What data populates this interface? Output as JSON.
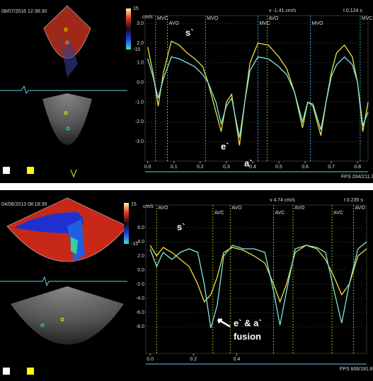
{
  "chart_data": [
    {
      "type": "line",
      "image_label": "08/07/2016 12:38:30",
      "colorbar_labels": [
        "15",
        "-15"
      ],
      "y_label": "cm/s",
      "readouts": [
        "v -1.41 cm/s",
        "t 0.124 s"
      ],
      "footer": "FPS 204/211.3",
      "xlim": [
        -0.01,
        0.84
      ],
      "ylim": [
        -4.0,
        3.4
      ],
      "xticks": [
        {
          "value": 0,
          "label": "0.0"
        },
        0.1,
        0.2,
        0.3,
        0.4,
        0.5,
        0.6,
        0.7,
        0.8
      ],
      "yticks": [
        {
          "value": 3,
          "label": "3.0"
        },
        {
          "value": 2,
          "label": "2.0"
        },
        {
          "value": 1,
          "label": "1.0"
        },
        {
          "value": 0,
          "label": "0.0"
        },
        {
          "value": -1,
          "label": "-1.0"
        },
        {
          "value": -2,
          "label": "-2.0"
        },
        {
          "value": -3,
          "label": "-3.0"
        }
      ],
      "events": [
        {
          "label": "MVC",
          "x": 0.03,
          "color": "#5ad0ff"
        },
        {
          "label": "AVO",
          "x": 0.075,
          "color": "#b8e000"
        },
        {
          "label": "MVO",
          "x": 0.22,
          "color": "#5ad0ff"
        },
        {
          "label": "MVC",
          "x": 0.42,
          "color": "#5ad0ff"
        },
        {
          "label": "AVO",
          "x": 0.455,
          "color": "#b8e000"
        },
        {
          "label": "MVO",
          "x": 0.62,
          "color": "#5ad0ff"
        },
        {
          "label": "MVC",
          "x": 0.81,
          "color": "#5ad0ff"
        }
      ],
      "annotations": [
        "s`",
        "e`",
        "a`"
      ],
      "x": [
        0,
        0.02,
        0.04,
        0.06,
        0.09,
        0.12,
        0.15,
        0.18,
        0.21,
        0.23,
        0.26,
        0.28,
        0.3,
        0.32,
        0.35,
        0.37,
        0.39,
        0.42,
        0.46,
        0.5,
        0.53,
        0.56,
        0.59,
        0.61,
        0.63,
        0.66,
        0.68,
        0.7,
        0.72,
        0.75,
        0.78,
        0.8,
        0.82,
        0.84
      ],
      "series": [
        {
          "color": "#f0e040",
          "values": [
            1.8,
            0.5,
            -1.2,
            0.5,
            2.1,
            1.9,
            1.5,
            1.2,
            0.8,
            0,
            -1.5,
            -2.5,
            -1,
            -0.6,
            -3.2,
            -1,
            1,
            2,
            1.9,
            1.3,
            0.7,
            -0.5,
            -2.3,
            -1,
            -1.2,
            -2.7,
            -1,
            0.5,
            1.5,
            1.9,
            1.3,
            0,
            -2.5,
            -1
          ]
        },
        {
          "color": "#7fe8e0",
          "values": [
            1.2,
            0.3,
            -0.8,
            0.2,
            1.3,
            1.2,
            1,
            0.8,
            0.4,
            0,
            -1,
            -2.1,
            -1.2,
            -0.8,
            -2.8,
            -1,
            0.6,
            1.3,
            1.2,
            0.8,
            0.4,
            -0.5,
            -2,
            -1,
            -1.1,
            -2.4,
            -1,
            0.3,
            0.9,
            1.3,
            0.9,
            0,
            -2.2,
            -1.5
          ]
        }
      ]
    },
    {
      "type": "line",
      "image_label": "04/06/2013 08:18:39",
      "colorbar_labels": [
        "15",
        "-15"
      ],
      "y_label": "cm/s",
      "readouts": [
        "v 4.74 cm/s",
        "t 0.235 s"
      ],
      "footer": "FPS 606/181.8",
      "xlim": [
        -0.02,
        1.0
      ],
      "ylim": [
        -11.8,
        9.2
      ],
      "xticks": [
        {
          "value": 0,
          "label": "0.0"
        },
        0.2,
        0.4
      ],
      "yticks": [
        {
          "value": 6,
          "label": "6.0"
        },
        {
          "value": 4,
          "label": "4.0"
        },
        {
          "value": 2,
          "label": "2.0"
        },
        {
          "value": 0,
          "label": "0.0"
        },
        {
          "value": -2,
          "label": "-2.0"
        },
        {
          "value": -4,
          "label": "-4.0"
        },
        {
          "value": -6,
          "label": "-6.0"
        },
        {
          "value": -8,
          "label": "-8.0"
        }
      ],
      "events": [
        {
          "label": "AVO",
          "x": 0.03,
          "color": "#b8e000"
        },
        {
          "label": "AVC",
          "x": 0.29,
          "color": "#b8e000"
        },
        {
          "label": "AVO",
          "x": 0.37,
          "color": "#b8e000"
        },
        {
          "label": "AVC",
          "x": 0.57,
          "color": "#b8e000"
        },
        {
          "label": "AVO",
          "x": 0.66,
          "color": "#b8e000"
        },
        {
          "label": "AVC",
          "x": 0.84,
          "color": "#b8e000"
        },
        {
          "label": "AVO",
          "x": 0.94,
          "color": "#b8e000"
        }
      ],
      "annotations": [
        "s`",
        "e` & a`",
        "fusion"
      ],
      "x": [
        0,
        0.03,
        0.06,
        0.1,
        0.14,
        0.18,
        0.22,
        0.25,
        0.28,
        0.31,
        0.34,
        0.38,
        0.43,
        0.48,
        0.53,
        0.57,
        0.6,
        0.63,
        0.67,
        0.72,
        0.77,
        0.81,
        0.85,
        0.885,
        0.92,
        0.96,
        1.0
      ],
      "series": [
        {
          "color": "#f0e040",
          "values": [
            3.5,
            2,
            3.2,
            2.5,
            1.5,
            0.5,
            -2,
            -4.5,
            -3.5,
            -1,
            2.5,
            3.2,
            2.8,
            2,
            1,
            -2,
            -4.5,
            -2,
            2.5,
            3.5,
            3,
            1.5,
            -1,
            -3.5,
            -2,
            2,
            3
          ]
        },
        {
          "color": "#7fe8e0",
          "values": [
            3,
            0.5,
            2.5,
            1.5,
            2.5,
            3,
            2.5,
            -2,
            -8.2,
            -5,
            2,
            3.5,
            3,
            3,
            2.5,
            -3,
            -7.8,
            -3,
            3,
            3.5,
            3.2,
            2.5,
            -3,
            -7.5,
            -2,
            3,
            4
          ]
        }
      ]
    }
  ]
}
